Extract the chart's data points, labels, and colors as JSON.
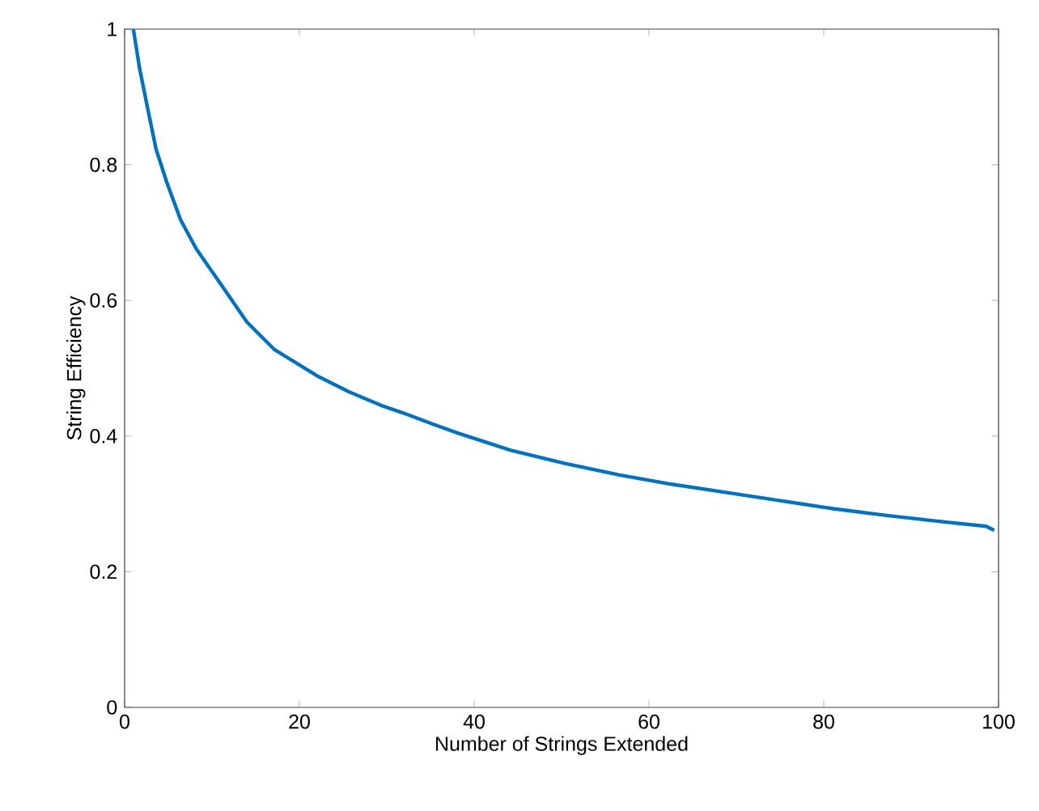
{
  "chart_data": {
    "type": "line",
    "xlabel": "Number of Strings Extended",
    "ylabel": "String Efficiency",
    "xlim": [
      0,
      100
    ],
    "ylim": [
      0,
      1
    ],
    "xticks": [
      0,
      20,
      40,
      60,
      80,
      100
    ],
    "yticks": [
      0,
      0.2,
      0.4,
      0.6,
      0.8,
      1
    ],
    "grid": false,
    "marker": "none",
    "line_style": "solid",
    "series": [
      {
        "color": "#0072bd",
        "x": [
          1.0,
          1.7,
          2.7,
          3.6,
          4.8,
          6.4,
          8.2,
          11.0,
          14.0,
          17.1,
          22.0,
          25.7,
          29.4,
          31.9,
          35.4,
          38.0,
          44.2,
          50.3,
          56.5,
          62.6,
          68.8,
          74.9,
          81.1,
          87.2,
          93.4,
          98.6,
          99.5
        ],
        "values": [
          1.0,
          0.943,
          0.879,
          0.823,
          0.775,
          0.719,
          0.676,
          0.624,
          0.568,
          0.528,
          0.489,
          0.465,
          0.445,
          0.434,
          0.417,
          0.405,
          0.379,
          0.36,
          0.343,
          0.329,
          0.317,
          0.305,
          0.293,
          0.283,
          0.274,
          0.267,
          0.261
        ]
      }
    ]
  }
}
